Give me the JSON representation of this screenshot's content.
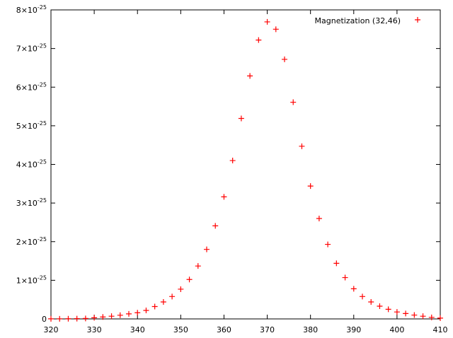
{
  "chart_data": {
    "type": "scatter",
    "xlim": [
      320,
      410
    ],
    "ylim": [
      0,
      8e-25
    ],
    "grid": false,
    "legend_position": "top-right",
    "x_ticks": [
      {
        "value": 320,
        "label": "320"
      },
      {
        "value": 330,
        "label": "330"
      },
      {
        "value": 340,
        "label": "340"
      },
      {
        "value": 350,
        "label": "350"
      },
      {
        "value": 360,
        "label": "360"
      },
      {
        "value": 370,
        "label": "370"
      },
      {
        "value": 380,
        "label": "380"
      },
      {
        "value": 390,
        "label": "390"
      },
      {
        "value": 400,
        "label": "400"
      },
      {
        "value": 410,
        "label": "410"
      }
    ],
    "y_ticks": [
      {
        "value": 0,
        "base": "0",
        "exp": ""
      },
      {
        "value": 1e-25,
        "base": "1×10",
        "exp": "-25"
      },
      {
        "value": 2e-25,
        "base": "2×10",
        "exp": "-25"
      },
      {
        "value": 3e-25,
        "base": "3×10",
        "exp": "-25"
      },
      {
        "value": 4e-25,
        "base": "4×10",
        "exp": "-25"
      },
      {
        "value": 5e-25,
        "base": "5×10",
        "exp": "-25"
      },
      {
        "value": 6e-25,
        "base": "6×10",
        "exp": "-25"
      },
      {
        "value": 7e-25,
        "base": "7×10",
        "exp": "-25"
      },
      {
        "value": 8e-25,
        "base": "8×10",
        "exp": "-25"
      }
    ],
    "series": [
      {
        "name": "Magnetization (32,46)",
        "color": "#ff0000",
        "marker": "plus",
        "x": [
          320,
          322,
          324,
          326,
          328,
          330,
          332,
          334,
          336,
          338,
          340,
          342,
          344,
          346,
          348,
          350,
          352,
          354,
          356,
          358,
          360,
          362,
          364,
          366,
          368,
          370,
          372,
          374,
          376,
          378,
          380,
          382,
          384,
          386,
          388,
          390,
          392,
          394,
          396,
          398,
          400,
          402,
          404,
          406,
          408,
          410
        ],
        "y": [
          2e-28,
          3e-28,
          5e-28,
          8e-28,
          1.2e-27,
          3e-27,
          5e-27,
          7e-27,
          9.5e-27,
          1.3e-26,
          1.6e-26,
          2.2e-26,
          3.2e-26,
          4.4e-26,
          5.8e-26,
          7.7e-26,
          1.02e-25,
          1.37e-25,
          1.8e-25,
          2.41e-25,
          3.16e-25,
          4.1e-25,
          5.19e-25,
          6.29e-25,
          7.22e-25,
          7.69e-25,
          7.5e-25,
          6.72e-25,
          5.61e-25,
          4.47e-25,
          3.44e-25,
          2.6e-25,
          1.93e-25,
          1.44e-25,
          1.07e-25,
          7.8e-26,
          5.8e-26,
          4.4e-26,
          3.3e-26,
          2.5e-26,
          1.8e-26,
          1.4e-26,
          1e-26,
          7e-27,
          4e-27,
          2e-27
        ]
      }
    ]
  }
}
